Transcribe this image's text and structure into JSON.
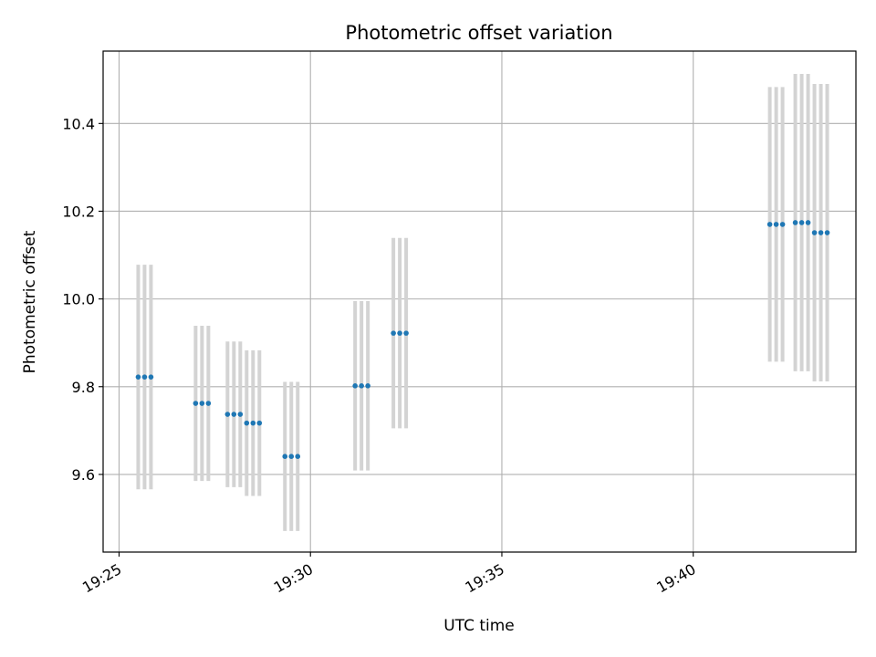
{
  "chart_data": {
    "type": "scatter",
    "title": "Photometric offset variation",
    "xlabel": "UTC time",
    "ylabel": "Photometric offset",
    "xlim": [
      "19:24:35",
      "19:44:15"
    ],
    "ylim": [
      9.423,
      10.565
    ],
    "x_ticks": [
      "19:25",
      "19:30",
      "19:35",
      "19:40"
    ],
    "y_ticks": [
      9.6,
      9.8,
      10.0,
      10.2,
      10.4
    ],
    "grid": true,
    "point_color": "#1f77b4",
    "errorbar_color": "#d3d3d3",
    "points": [
      {
        "x": "19:25:30",
        "y": 9.822,
        "err": 0.256
      },
      {
        "x": "19:25:40",
        "y": 9.822,
        "err": 0.256
      },
      {
        "x": "19:25:50",
        "y": 9.822,
        "err": 0.256
      },
      {
        "x": "19:27:00",
        "y": 9.762,
        "err": 0.177
      },
      {
        "x": "19:27:10",
        "y": 9.762,
        "err": 0.177
      },
      {
        "x": "19:27:20",
        "y": 9.762,
        "err": 0.177
      },
      {
        "x": "19:27:50",
        "y": 9.737,
        "err": 0.166
      },
      {
        "x": "19:28:00",
        "y": 9.737,
        "err": 0.166
      },
      {
        "x": "19:28:10",
        "y": 9.737,
        "err": 0.166
      },
      {
        "x": "19:28:20",
        "y": 9.717,
        "err": 0.166
      },
      {
        "x": "19:28:30",
        "y": 9.717,
        "err": 0.166
      },
      {
        "x": "19:28:40",
        "y": 9.717,
        "err": 0.166
      },
      {
        "x": "19:29:20",
        "y": 9.641,
        "err": 0.17
      },
      {
        "x": "19:29:30",
        "y": 9.641,
        "err": 0.17
      },
      {
        "x": "19:29:40",
        "y": 9.641,
        "err": 0.17
      },
      {
        "x": "19:31:10",
        "y": 9.802,
        "err": 0.193
      },
      {
        "x": "19:31:20",
        "y": 9.802,
        "err": 0.193
      },
      {
        "x": "19:31:30",
        "y": 9.802,
        "err": 0.193
      },
      {
        "x": "19:32:10",
        "y": 9.922,
        "err": 0.217
      },
      {
        "x": "19:32:20",
        "y": 9.922,
        "err": 0.217
      },
      {
        "x": "19:32:30",
        "y": 9.922,
        "err": 0.217
      },
      {
        "x": "19:42:00",
        "y": 10.17,
        "err": 0.313
      },
      {
        "x": "19:42:10",
        "y": 10.17,
        "err": 0.313
      },
      {
        "x": "19:42:20",
        "y": 10.17,
        "err": 0.313
      },
      {
        "x": "19:42:40",
        "y": 10.174,
        "err": 0.339
      },
      {
        "x": "19:42:50",
        "y": 10.174,
        "err": 0.339
      },
      {
        "x": "19:43:00",
        "y": 10.174,
        "err": 0.339
      },
      {
        "x": "19:43:10",
        "y": 10.151,
        "err": 0.339
      },
      {
        "x": "19:43:20",
        "y": 10.151,
        "err": 0.339
      },
      {
        "x": "19:43:30",
        "y": 10.151,
        "err": 0.339
      }
    ]
  }
}
